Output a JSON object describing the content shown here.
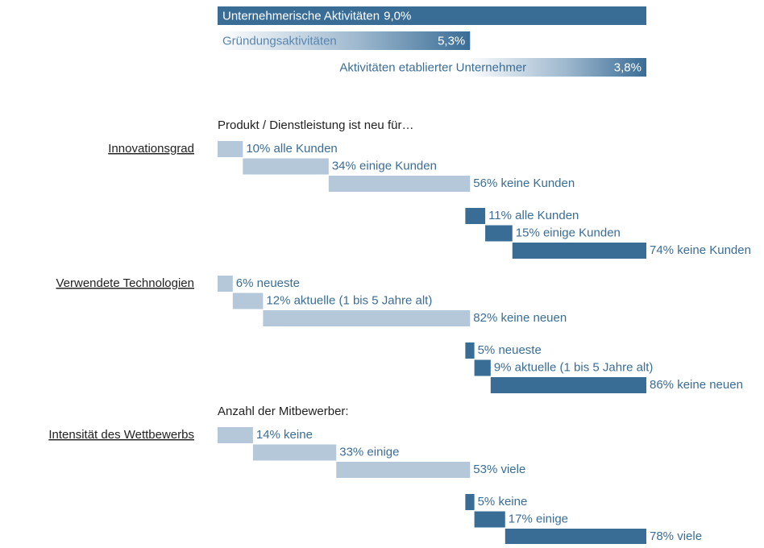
{
  "chart_data": {
    "type": "waterfall",
    "summary": {
      "categories": [
        "Unternehmerische Aktivitäten",
        "Gründungsaktivitäten",
        "Aktivitäten etablierter Unternehmer"
      ],
      "values": [
        9.0,
        5.3,
        3.8
      ],
      "value_labels": [
        "9,0%",
        "5,3%",
        "3,8%"
      ],
      "colors": [
        "#3a6d96",
        "#3a6d96",
        "#3a6d96"
      ]
    },
    "groups": [
      {
        "label": "Innovationsgrad",
        "subtitle": "Produkt / Dienstleistung ist neu für…",
        "series": [
          {
            "color": "#b4c8da",
            "values": [
              10,
              34,
              56
            ],
            "value_labels": [
              "10% alle Kunden",
              "34% einige Kunden",
              "56% keine Kunden"
            ]
          },
          {
            "color": "#3a6d96",
            "values": [
              11,
              15,
              74
            ],
            "value_labels": [
              "11% alle Kunden",
              "15% einige Kunden",
              "74% keine Kunden"
            ]
          }
        ]
      },
      {
        "label": "Verwendete Technologien",
        "series": [
          {
            "color": "#b4c8da",
            "values": [
              6,
              12,
              82
            ],
            "value_labels": [
              "6% neueste",
              "12% aktuelle (1 bis 5 Jahre alt)",
              "82% keine neuen"
            ]
          },
          {
            "color": "#3a6d96",
            "values": [
              5,
              9,
              86
            ],
            "value_labels": [
              "5% neueste",
              "9% aktuelle (1 bis 5 Jahre alt)",
              "86% keine neuen"
            ]
          }
        ]
      },
      {
        "label": "Intensität des Wettbewerbs",
        "subtitle": "Anzahl der Mitbewerber:",
        "series": [
          {
            "color": "#b4c8da",
            "values": [
              14,
              33,
              53
            ],
            "value_labels": [
              "14% keine",
              "33% einige",
              "53% viele"
            ]
          },
          {
            "color": "#3a6d96",
            "values": [
              5,
              17,
              78
            ],
            "value_labels": [
              "5% keine",
              "17% einige",
              "78% viele"
            ]
          }
        ]
      }
    ]
  }
}
